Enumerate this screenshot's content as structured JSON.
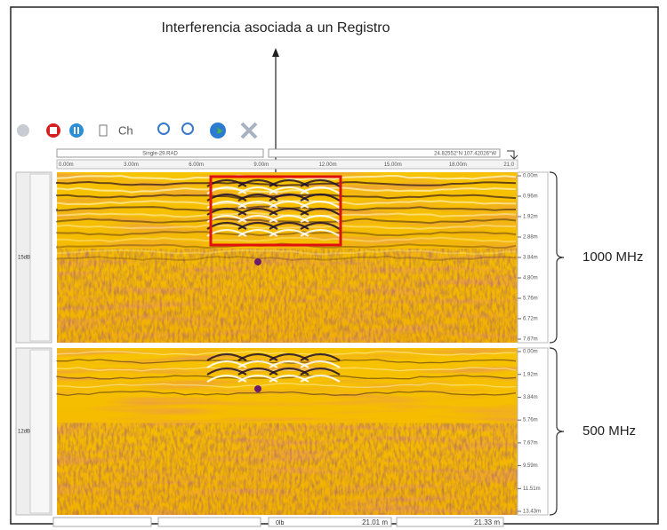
{
  "annotation": "Interferencia asociada a un Registro",
  "toolbar": {
    "channel_button": "Ch"
  },
  "file_name": "Single-29.RAD",
  "coordinates": "24.82552°N 107.42026°W",
  "distance_ticks": [
    "0.00m",
    "3.00m",
    "6.00m",
    "9.00m",
    "12.00m",
    "15.00m",
    "18.00m",
    "21.0"
  ],
  "channels": [
    {
      "label": "1000 MHz",
      "gain": "15dB",
      "depth_ticks": [
        "0.00m",
        "0.96m",
        "1.92m",
        "2.88m",
        "3.84m",
        "4.80m",
        "5.76m",
        "6.72m",
        "7.67m"
      ]
    },
    {
      "label": "500 MHz",
      "gain": "12dB",
      "depth_ticks": [
        "0.00m",
        "1.92m",
        "3.84m",
        "5.76m",
        "7.67m",
        "9.59m",
        "11.51m",
        "13.43m"
      ]
    }
  ],
  "status": {
    "field_1": "0lb",
    "field_2": "21.01 m",
    "field_3": "21.33 m"
  }
}
